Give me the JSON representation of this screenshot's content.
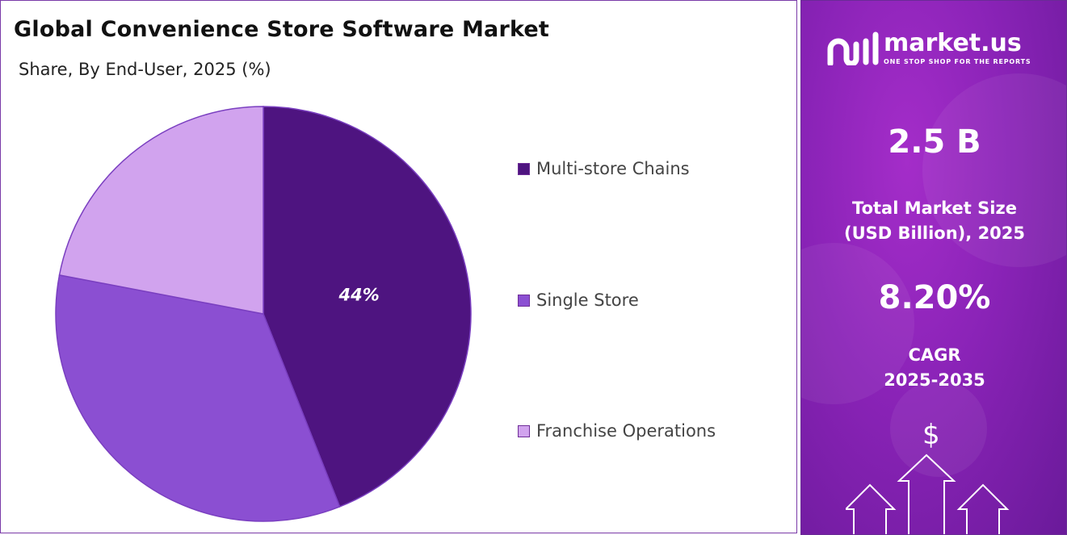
{
  "title": "Global Convenience Store Software Market",
  "subtitle": "Share, By End-User, 2025 (%)",
  "chart_data": {
    "type": "pie",
    "categories": [
      "Multi-store Chains",
      "Single Store",
      "Franchise Operations"
    ],
    "values": [
      44,
      34,
      22
    ],
    "colors": [
      "#4e1480",
      "#8b4fd2",
      "#d1a3ee"
    ],
    "data_labels": [
      "44%",
      "",
      ""
    ],
    "legend_position": "right"
  },
  "sidebar": {
    "brand_name": "market.us",
    "brand_tagline": "ONE STOP SHOP FOR THE REPORTS",
    "market_size_value": "2.5 B",
    "market_size_label_line1": "Total Market Size",
    "market_size_label_line2": "(USD Billion), 2025",
    "cagr_value": "8.20%",
    "cagr_label_line1": "CAGR",
    "cagr_label_line2": "2025-2035",
    "currency_symbol": "$"
  }
}
